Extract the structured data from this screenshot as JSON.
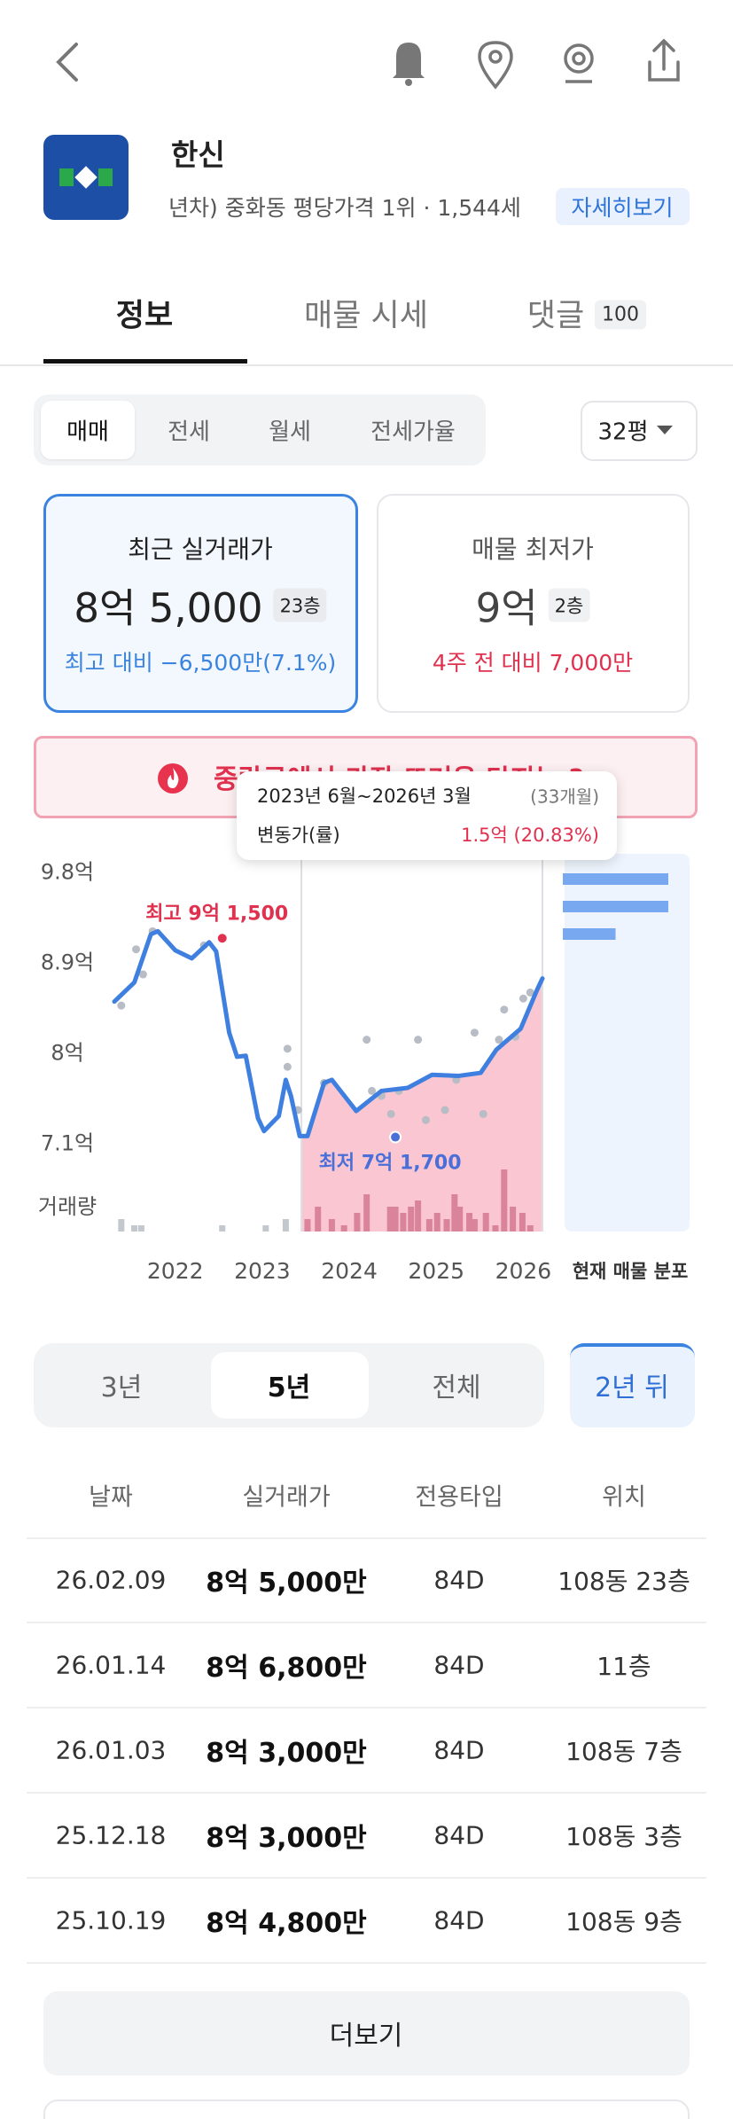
{
  "header": {
    "title": "한신",
    "subtitle": "년차) 중화동 평당가격 1위 · 1,544세",
    "detail_button": "자세히보기"
  },
  "tabs": [
    {
      "label": "정보"
    },
    {
      "label": "매물 시세"
    },
    {
      "label": "댓글",
      "badge": 100
    }
  ],
  "trade_types": [
    "매매",
    "전세",
    "월세",
    "전세가율"
  ],
  "size_select": "32평",
  "cards": [
    {
      "title": "최근 실거래가",
      "price": "8억 5,000",
      "floor": "23층",
      "note": "최고 대비 −6,500만(7.1%)"
    },
    {
      "title": "매물 최저가",
      "price": "9억",
      "floor": "2층",
      "note": "4주 전 대비 7,000만"
    }
  ],
  "banner": "중랑구에서 가장 뜨거운 단지는 ?",
  "tooltip": {
    "period": "2023년 6월~2026년 3월",
    "months": "(33개월)",
    "change_label": "변동가(률)",
    "change": "1.5억 (20.83%)"
  },
  "chart_data": {
    "type": "line",
    "xlim": [
      2021.3,
      2026.22
    ],
    "ylim": [
      6.23,
      10.0
    ],
    "xticks": [
      2022,
      2023,
      2024,
      2025,
      2026
    ],
    "yticks": [
      {
        "value": 9.8,
        "label": "9.8억"
      },
      {
        "value": 8.9,
        "label": "8.9억"
      },
      {
        "value": 8,
        "label": "8억"
      },
      {
        "value": 7.1,
        "label": "7.1억"
      }
    ],
    "line": {
      "color": "#3f7fe0",
      "x": [
        2021.3,
        2021.53,
        2021.72,
        2021.8,
        2022.0,
        2022.19,
        2022.39,
        2022.47,
        2022.62,
        2022.71,
        2022.81,
        2022.95,
        2023.02,
        2023.19,
        2023.27,
        2023.33,
        2023.43,
        2023.52,
        2023.71,
        2023.8,
        2024.08,
        2024.37,
        2024.67,
        2024.95,
        2025.26,
        2025.51,
        2025.69,
        2025.97,
        2026.16,
        2026.22
      ],
      "values": [
        8.52,
        8.71,
        9.19,
        9.22,
        9.03,
        8.95,
        9.11,
        9.02,
        8.21,
        7.97,
        7.98,
        7.36,
        7.23,
        7.38,
        7.74,
        7.58,
        7.18,
        7.18,
        7.71,
        7.74,
        7.43,
        7.63,
        7.66,
        7.79,
        7.78,
        7.81,
        8.04,
        8.25,
        8.64,
        8.75
      ]
    },
    "scatter": {
      "color": "#b8bcc4",
      "x": [
        2021.38,
        2021.55,
        2021.63,
        2021.74,
        2022.33,
        2023.29,
        2023.29,
        2023.41,
        2023.71,
        2024.2,
        2024.26,
        2024.37,
        2024.48,
        2024.57,
        2024.79,
        2024.88,
        2025.1,
        2025.23,
        2025.44,
        2025.54,
        2025.72,
        2025.78,
        2025.91,
        2026.0,
        2026.08
      ],
      "values": [
        8.48,
        9.04,
        8.79,
        9.22,
        9.08,
        8.05,
        7.87,
        7.44,
        7.71,
        8.14,
        7.63,
        7.58,
        7.4,
        7.63,
        8.14,
        7.34,
        7.44,
        7.74,
        8.21,
        7.4,
        8.14,
        8.44,
        8.17,
        8.55,
        8.61
      ]
    },
    "volume": {
      "label": "거래량",
      "color": "#c3c7ce",
      "highlight_color": "#d9849a",
      "x": [
        2021.38,
        2021.53,
        2021.61,
        2022.54,
        2023.04,
        2023.27,
        2023.52,
        2023.64,
        2023.8,
        2023.94,
        2024.09,
        2024.2,
        2024.47,
        2024.53,
        2024.62,
        2024.71,
        2024.79,
        2024.92,
        2025.01,
        2025.12,
        2025.21,
        2025.27,
        2025.38,
        2025.44,
        2025.57,
        2025.68,
        2025.78,
        2025.88,
        2025.99,
        2026.08
      ],
      "values": [
        2,
        1,
        1,
        1,
        1,
        2,
        2,
        4,
        2,
        1,
        3,
        6,
        4,
        4,
        3,
        4,
        5,
        2,
        3,
        2,
        6,
        4,
        3,
        2,
        3,
        1,
        10,
        4,
        3,
        1
      ]
    },
    "highlight_x": [
      2023.45,
      2026.22
    ],
    "highlight_color": "#f9c6d1",
    "annotations": [
      {
        "text": "최고 9억 1,500",
        "x": 2022.54,
        "value": 9.15,
        "color": "#e0314f"
      },
      {
        "text": "최저 7억 1,700",
        "x": 2024.53,
        "value": 7.17,
        "color": "#4a6fd8"
      }
    ],
    "distribution": {
      "label": "현재 매물 분포",
      "color": "#78a8f0",
      "values": [
        2,
        2,
        1
      ]
    }
  },
  "periods": [
    "3년",
    "5년",
    "전체"
  ],
  "future_button": "2년 뒤",
  "table": {
    "header": [
      "날짜",
      "실거래가",
      "전용타입",
      "위치"
    ],
    "rows": [
      [
        "26.02.09",
        "8억 5,000만",
        "84D",
        "108동 23층"
      ],
      [
        "26.01.14",
        "8억 6,800만",
        "84D",
        "11층"
      ],
      [
        "26.01.03",
        "8억 3,000만",
        "84D",
        "108동 7층"
      ],
      [
        "25.12.18",
        "8억 3,000만",
        "84D",
        "108동 3층"
      ],
      [
        "25.10.19",
        "8억 4,800만",
        "84D",
        "108동 9층"
      ]
    ]
  },
  "more_button": "더보기"
}
